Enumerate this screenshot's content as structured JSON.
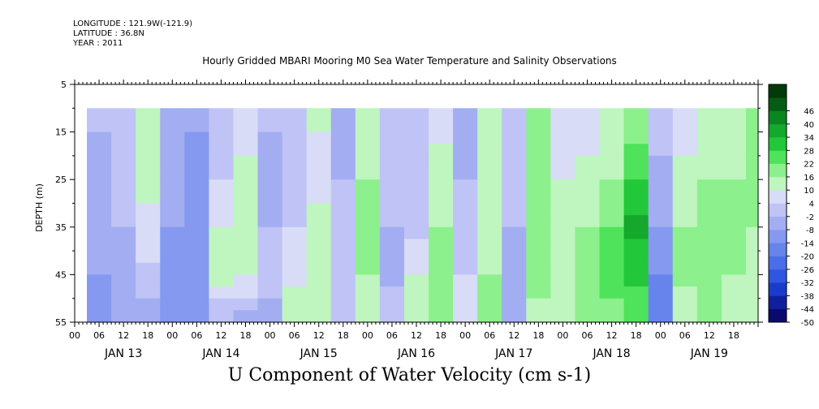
{
  "header": {
    "longitude": "LONGITUDE : 121.9W(-121.9)",
    "latitude": "LATITUDE : 36.8N",
    "year": "YEAR : 2011"
  },
  "chart_data": {
    "type": "heatmap",
    "title": "Hourly Gridded MBARI Mooring M0 Sea Water Temperature and Salinity Observations",
    "xlabel": "U Component of Water Velocity (cm s-1)",
    "ylabel": "DEPTH (m)",
    "ylim": [
      55,
      5
    ],
    "y_ticks": [
      5,
      15,
      25,
      35,
      45,
      55
    ],
    "data_depth_range": [
      10,
      55
    ],
    "x_start_hour": 0,
    "x_end_hour": 168,
    "data_start_hour": 3,
    "x_hour_ticks": [
      "00",
      "06",
      "12",
      "18",
      "00",
      "06",
      "12",
      "18",
      "00",
      "06",
      "12",
      "18",
      "00",
      "06",
      "12",
      "18",
      "00",
      "06",
      "12",
      "18",
      "00",
      "06",
      "12",
      "18",
      "00",
      "06",
      "12",
      "18"
    ],
    "x_day_labels": [
      "JAN 13",
      "JAN 14",
      "JAN 15",
      "JAN 16",
      "JAN 17",
      "JAN 18",
      "JAN 19"
    ],
    "colorbar_levels": [
      -50,
      -44,
      -38,
      -32,
      -26,
      -20,
      -14,
      -8,
      -2,
      4,
      10,
      16,
      22,
      28,
      34,
      40,
      46
    ],
    "colorbar_labels": [
      "46",
      "40",
      "34",
      "28",
      "22",
      "16",
      "10",
      "4",
      "-2",
      "-8",
      "-14",
      "-20",
      "-26",
      "-32",
      "-38",
      "-44",
      "-50"
    ],
    "colors": [
      "#0a0a6e",
      "#10209c",
      "#1a3ccc",
      "#2f56e0",
      "#4a6ee8",
      "#6684ec",
      "#8599f0",
      "#a3adf2",
      "#bfc3f5",
      "#d9dcf7",
      "#bff5bf",
      "#8cf08c",
      "#4ee35a",
      "#22c83a",
      "#14a82c",
      "#0a8520",
      "#055c14",
      "#023a0a"
    ],
    "columns": [
      {
        "hour": 3,
        "values": [
          -8,
          -10,
          -12,
          -14,
          -18
        ]
      },
      {
        "hour": 9,
        "values": [
          -6,
          -4,
          -8,
          -10,
          -12
        ]
      },
      {
        "hour": 15,
        "values": [
          4,
          6,
          2,
          -4,
          -14
        ]
      },
      {
        "hour": 21,
        "values": [
          -10,
          -12,
          -14,
          -16,
          -18
        ]
      },
      {
        "hour": 27,
        "values": [
          -14,
          -18,
          -20,
          -18,
          -16
        ]
      },
      {
        "hour": 33,
        "values": [
          -6,
          -2,
          4,
          6,
          -8
        ]
      },
      {
        "hour": 39,
        "values": [
          2,
          6,
          10,
          6,
          -14
        ]
      },
      {
        "hour": 45,
        "values": [
          -8,
          -10,
          -8,
          -6,
          -10
        ]
      },
      {
        "hour": 51,
        "values": [
          -6,
          -4,
          -2,
          2,
          8
        ]
      },
      {
        "hour": 57,
        "values": [
          4,
          2,
          6,
          8,
          10
        ]
      },
      {
        "hour": 63,
        "values": [
          -10,
          -8,
          -6,
          -4,
          -2
        ]
      },
      {
        "hour": 69,
        "values": [
          8,
          10,
          12,
          10,
          4
        ]
      },
      {
        "hour": 75,
        "values": [
          -4,
          -6,
          -8,
          -10,
          -4
        ]
      },
      {
        "hour": 81,
        "values": [
          -8,
          -6,
          -4,
          4,
          10
        ]
      },
      {
        "hour": 87,
        "values": [
          2,
          8,
          10,
          12,
          14
        ]
      },
      {
        "hour": 93,
        "values": [
          -10,
          -8,
          -4,
          -2,
          4
        ]
      },
      {
        "hour": 99,
        "values": [
          4,
          6,
          8,
          10,
          12
        ]
      },
      {
        "hour": 105,
        "values": [
          -4,
          -6,
          -8,
          -10,
          -12
        ]
      },
      {
        "hour": 111,
        "values": [
          10,
          14,
          16,
          12,
          8
        ]
      },
      {
        "hour": 117,
        "values": [
          -2,
          4,
          6,
          8,
          10
        ]
      },
      {
        "hour": 123,
        "values": [
          2,
          6,
          10,
          12,
          14
        ]
      },
      {
        "hour": 129,
        "values": [
          4,
          10,
          16,
          18,
          14
        ]
      },
      {
        "hour": 135,
        "values": [
          14,
          22,
          30,
          24,
          16
        ]
      },
      {
        "hour": 141,
        "values": [
          -6,
          -10,
          -14,
          -20,
          -26
        ]
      },
      {
        "hour": 147,
        "values": [
          2,
          6,
          10,
          12,
          6
        ]
      },
      {
        "hour": 153,
        "values": [
          6,
          10,
          14,
          16,
          10
        ]
      },
      {
        "hour": 159,
        "values": [
          8,
          10,
          12,
          10,
          8
        ]
      },
      {
        "hour": 165,
        "values": [
          10,
          12,
          10,
          8,
          6
        ]
      }
    ],
    "column_depths": [
      15,
      25,
      35,
      45,
      55
    ],
    "grid": false,
    "legend": "right"
  }
}
